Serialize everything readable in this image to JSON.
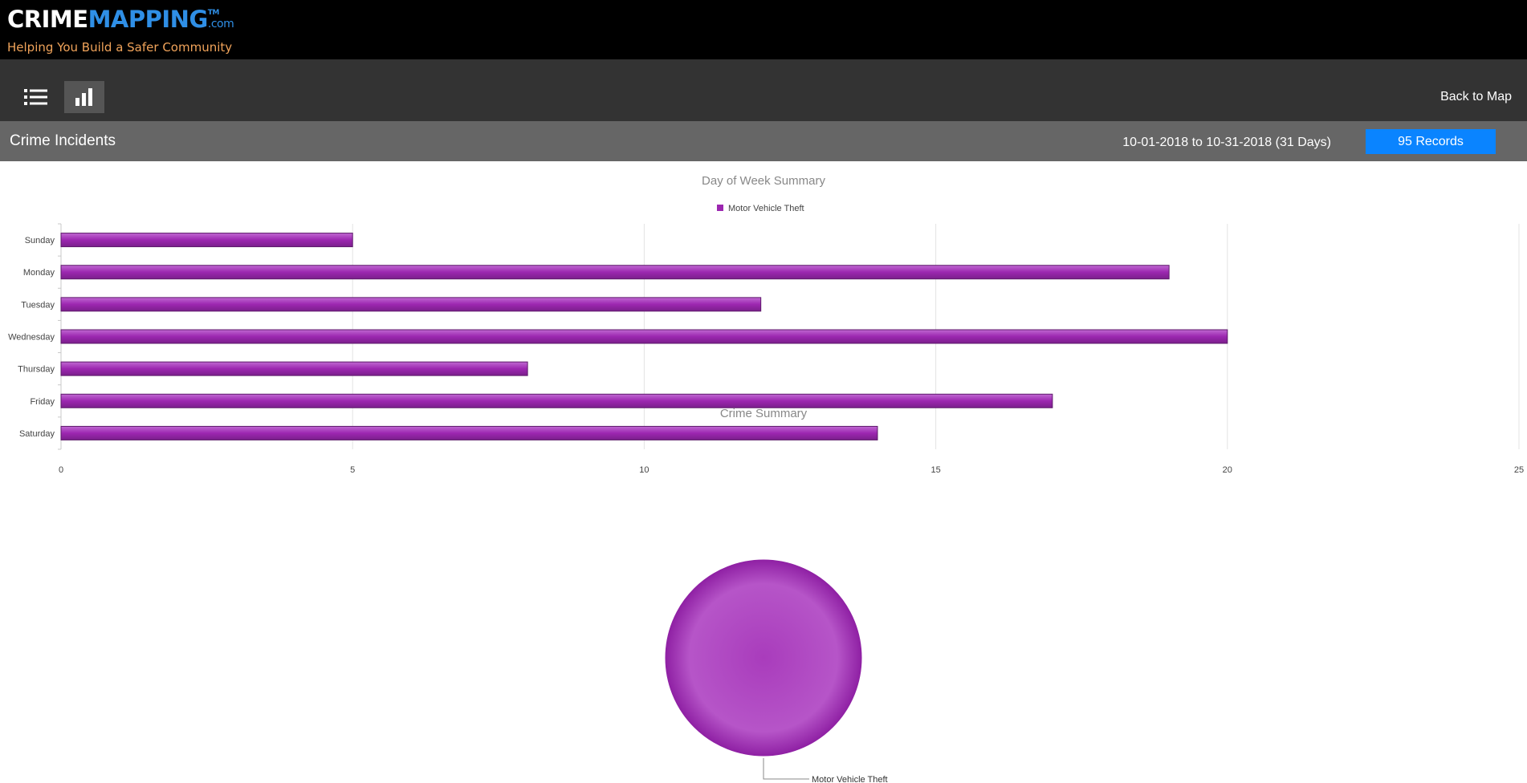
{
  "brand": {
    "crime": "CRIME",
    "mapping": "MAPPING",
    "tm": "TM",
    "com": ".com",
    "tagline": "Helping You Build a Safer Community"
  },
  "toolbar": {
    "list_icon": "list-icon",
    "chart_icon": "bar-chart-icon",
    "back_label": "Back to Map"
  },
  "header": {
    "title": "Crime Incidents",
    "date_range": "10-01-2018 to 10-31-2018 (31 Days)",
    "records": "95 Records"
  },
  "colors": {
    "brand_blue": "#2f8fe6",
    "tagline_orange": "#f0a35a",
    "badge_blue": "#0a84ff",
    "series_purple": "#9c27b0"
  },
  "chart_data": [
    {
      "type": "bar",
      "orientation": "horizontal",
      "title": "Day of Week Summary",
      "categories": [
        "Sunday",
        "Monday",
        "Tuesday",
        "Wednesday",
        "Thursday",
        "Friday",
        "Saturday"
      ],
      "series": [
        {
          "name": "Motor Vehicle Theft",
          "values": [
            5,
            19,
            12,
            20,
            8,
            17,
            14
          ]
        }
      ],
      "xlim": [
        0,
        25
      ],
      "xticks": [
        "0",
        "5",
        "10",
        "15",
        "20",
        "25"
      ],
      "grid": true,
      "legend": "top-center"
    },
    {
      "type": "pie",
      "title": "Crime Summary",
      "slices": [
        {
          "label": "Motor Vehicle Theft",
          "value": 95
        }
      ]
    }
  ]
}
